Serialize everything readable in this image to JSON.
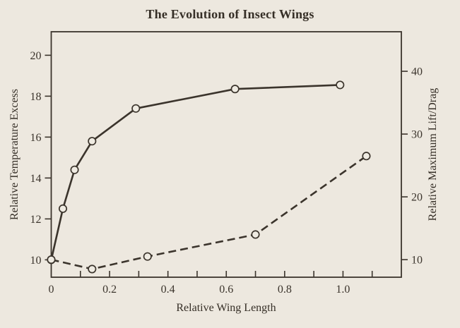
{
  "colors": {
    "background": "#EDE8DF",
    "ink": "#3B342C",
    "marker_fill": "#EFEBE2"
  },
  "chart_data": {
    "type": "line",
    "title": "The Evolution of Insect Wings",
    "grid": false,
    "legend": "none",
    "x_axis": {
      "label": "Relative Wing Length",
      "range": [
        0,
        1.2
      ],
      "minor_tick_values": [
        0.1,
        0.2,
        0.3,
        0.4,
        0.5,
        0.6,
        0.7,
        0.8,
        0.9,
        1.0,
        1.1
      ],
      "labeled_ticks": [
        {
          "value": 0,
          "label": "0"
        },
        {
          "value": 0.2,
          "label": "0.2"
        },
        {
          "value": 0.4,
          "label": "0.4"
        },
        {
          "value": 0.6,
          "label": "0.6"
        },
        {
          "value": 0.8,
          "label": "0.8"
        },
        {
          "value": 1.0,
          "label": "1.0"
        }
      ]
    },
    "y_left": {
      "label": "Relative Temperature Excess",
      "range": [
        9.15,
        21.15
      ],
      "ticks": [
        10,
        12,
        14,
        16,
        18,
        20
      ]
    },
    "y_right": {
      "label": "Relative Maximum Lift/Drag",
      "range": [
        7.2,
        46.3
      ],
      "ticks": [
        10,
        20,
        30,
        40
      ]
    },
    "series": [
      {
        "name": "relative-temperature-excess",
        "axis": "left",
        "line_style": "solid",
        "marker": "open-circle",
        "points": [
          [
            0,
            10
          ],
          [
            0.04,
            12.5
          ],
          [
            0.08,
            14.4
          ],
          [
            0.14,
            15.8
          ],
          [
            0.29,
            17.4
          ],
          [
            0.63,
            18.35
          ],
          [
            0.99,
            18.55
          ]
        ]
      },
      {
        "name": "relative-maximum-lift-drag",
        "axis": "right",
        "line_style": "dashed",
        "marker": "open-circle",
        "points": [
          [
            0,
            10
          ],
          [
            0.14,
            8.5
          ],
          [
            0.33,
            10.5
          ],
          [
            0.7,
            14
          ],
          [
            1.08,
            26.5
          ]
        ]
      }
    ]
  }
}
